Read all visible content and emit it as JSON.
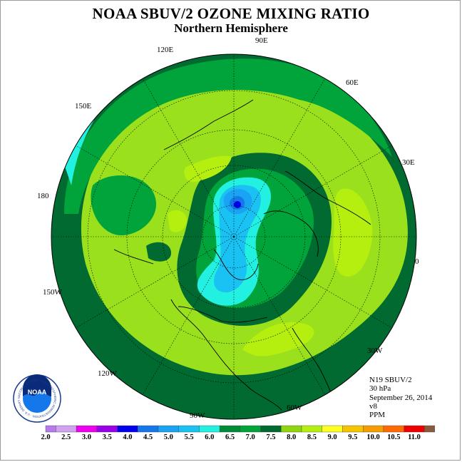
{
  "title": "NOAA SBUV/2 OZONE MIXING RATIO",
  "subtitle": "Northern Hemisphere",
  "longitude_labels": [
    "90E",
    "60E",
    "30E",
    "0",
    "30W",
    "60W",
    "90W",
    "120W",
    "150W",
    "180",
    "150E",
    "120E"
  ],
  "metadata": {
    "instrument": "N19 SBUV/2",
    "pressure_level": "30 hPa",
    "date": "September 26, 2014",
    "version": "v8",
    "units": "PPM"
  },
  "legend": {
    "values": [
      "2.0",
      "2.5",
      "3.0",
      "3.5",
      "4.0",
      "4.5",
      "5.0",
      "5.5",
      "6.0",
      "6.5",
      "7.0",
      "7.5",
      "8.0",
      "8.5",
      "9.0",
      "9.5",
      "10.0",
      "10.5",
      "11.0"
    ],
    "colors": [
      "#b57bec",
      "#d2a2f2",
      "#ee00ee",
      "#9a00e8",
      "#0000ee",
      "#1478ea",
      "#1aa3f2",
      "#19c2f2",
      "#22f0e0",
      "#008c37",
      "#00a43a",
      "#006a30",
      "#8fd610",
      "#b5ef10",
      "#ffff22",
      "#f7c400",
      "#f59d00",
      "#ff6a00",
      "#ee0000",
      "#8b5a3c"
    ]
  },
  "logo": {
    "text": "NOAA",
    "ring_text": "NATIONAL OCEANIC AND ATMOSPHERIC ADMINISTRATION · U.S. DEPARTMENT OF COMMERCE"
  }
}
